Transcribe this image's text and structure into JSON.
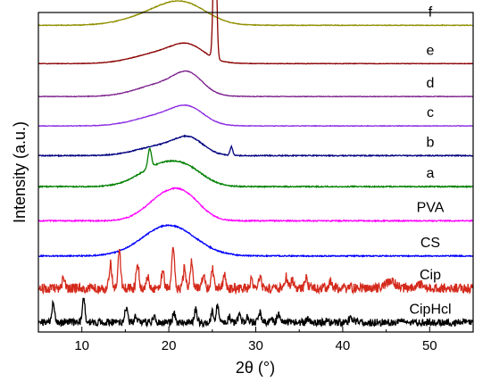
{
  "chart_data": {
    "type": "line",
    "title": "",
    "xlabel": "2θ (°)",
    "ylabel": "Intensity (a.u.)",
    "xlim": [
      5,
      55
    ],
    "xticks": [
      10,
      20,
      30,
      40,
      50
    ],
    "y_tick_labels": "none",
    "grid": false,
    "series": [
      {
        "name": "f",
        "color": "#8f8f00",
        "baseline": 0.96,
        "amp": 0.045,
        "broad": [
          {
            "c": 19.5,
            "h": 1.0,
            "w": 3.5
          },
          {
            "c": 22.0,
            "h": 0.85,
            "w": 2.5
          }
        ],
        "sharp": [],
        "noise": 0.008
      },
      {
        "name": "e",
        "color": "#8b0000",
        "baseline": 0.84,
        "amp": 0.04,
        "broad": [
          {
            "c": 19.5,
            "h": 0.9,
            "w": 3.2
          },
          {
            "c": 22.3,
            "h": 0.95,
            "w": 1.8
          }
        ],
        "sharp": [
          {
            "c": 25.3,
            "h": 11.5,
            "w": 0.18
          }
        ],
        "noise": 0.007
      },
      {
        "name": "d",
        "color": "#7b1f8c",
        "baseline": 0.737,
        "amp": 0.045,
        "broad": [
          {
            "c": 19.5,
            "h": 0.9,
            "w": 3.0
          },
          {
            "c": 22.3,
            "h": 1.15,
            "w": 1.6
          }
        ],
        "sharp": [],
        "noise": 0.007
      },
      {
        "name": "c",
        "color": "#8a2be2",
        "baseline": 0.645,
        "amp": 0.045,
        "broad": [
          {
            "c": 19.3,
            "h": 0.75,
            "w": 3.0
          },
          {
            "c": 22.3,
            "h": 0.95,
            "w": 1.8
          }
        ],
        "sharp": [],
        "noise": 0.007
      },
      {
        "name": "b",
        "color": "#000080",
        "baseline": 0.552,
        "amp": 0.045,
        "broad": [
          {
            "c": 19.3,
            "h": 0.7,
            "w": 2.8
          },
          {
            "c": 22.4,
            "h": 0.95,
            "w": 1.6
          }
        ],
        "sharp": [
          {
            "c": 27.2,
            "h": 0.6,
            "w": 0.15
          }
        ],
        "noise": 0.012
      },
      {
        "name": "a",
        "color": "#008000",
        "baseline": 0.455,
        "amp": 0.05,
        "broad": [
          {
            "c": 19.2,
            "h": 1.3,
            "w": 2.6
          },
          {
            "c": 22.3,
            "h": 0.7,
            "w": 2.0
          }
        ],
        "sharp": [
          {
            "c": 17.8,
            "h": 1.2,
            "w": 0.2
          }
        ],
        "noise": 0.012
      },
      {
        "name": "PVA",
        "color": "#ff00ff",
        "baseline": 0.348,
        "amp": 0.05,
        "broad": [
          {
            "c": 19.6,
            "h": 1.5,
            "w": 2.2
          },
          {
            "c": 22.2,
            "h": 1.0,
            "w": 1.8
          }
        ],
        "sharp": [],
        "noise": 0.012
      },
      {
        "name": "CS",
        "color": "#0000ff",
        "baseline": 0.238,
        "amp": 0.06,
        "broad": [
          {
            "c": 20.0,
            "h": 1.6,
            "w": 3.0
          }
        ],
        "sharp": [],
        "noise": 0.01
      },
      {
        "name": "Cip",
        "color": "#d42a1c",
        "baseline": 0.137,
        "amp": 0.025,
        "broad": [],
        "sharp": [
          {
            "c": 7.9,
            "h": 1.3,
            "w": 0.15
          },
          {
            "c": 13.3,
            "h": 3.0,
            "w": 0.15
          },
          {
            "c": 14.3,
            "h": 5.0,
            "w": 0.15
          },
          {
            "c": 16.4,
            "h": 3.5,
            "w": 0.15
          },
          {
            "c": 17.6,
            "h": 1.5,
            "w": 0.15
          },
          {
            "c": 19.3,
            "h": 2.2,
            "w": 0.15
          },
          {
            "c": 20.5,
            "h": 5.2,
            "w": 0.15
          },
          {
            "c": 21.8,
            "h": 2.5,
            "w": 0.15
          },
          {
            "c": 22.6,
            "h": 3.2,
            "w": 0.15
          },
          {
            "c": 24.0,
            "h": 2.0,
            "w": 0.15
          },
          {
            "c": 25.0,
            "h": 2.5,
            "w": 0.15
          },
          {
            "c": 26.4,
            "h": 1.8,
            "w": 0.15
          },
          {
            "c": 29.5,
            "h": 1.2,
            "w": 0.15
          },
          {
            "c": 30.5,
            "h": 1.5,
            "w": 0.15
          },
          {
            "c": 33.5,
            "h": 1.4,
            "w": 0.15
          },
          {
            "c": 34.2,
            "h": 1.0,
            "w": 0.15
          },
          {
            "c": 35.8,
            "h": 1.5,
            "w": 0.15
          },
          {
            "c": 38.6,
            "h": 1.0,
            "w": 0.15
          },
          {
            "c": 45.5,
            "h": 0.8,
            "w": 0.6
          },
          {
            "c": 49.0,
            "h": 0.6,
            "w": 0.4
          }
        ],
        "noise": 0.2
      },
      {
        "name": "CipHcl",
        "color": "#000000",
        "baseline": 0.03,
        "amp": 0.025,
        "broad": [],
        "sharp": [
          {
            "c": 6.7,
            "h": 2.4,
            "w": 0.15
          },
          {
            "c": 10.2,
            "h": 3.0,
            "w": 0.15
          },
          {
            "c": 15.1,
            "h": 1.8,
            "w": 0.15
          },
          {
            "c": 16.2,
            "h": 0.8,
            "w": 0.15
          },
          {
            "c": 18.3,
            "h": 0.6,
            "w": 0.15
          },
          {
            "c": 20.6,
            "h": 1.2,
            "w": 0.15
          },
          {
            "c": 23.1,
            "h": 1.6,
            "w": 0.15
          },
          {
            "c": 25.0,
            "h": 1.5,
            "w": 0.15
          },
          {
            "c": 25.6,
            "h": 2.0,
            "w": 0.15
          },
          {
            "c": 27.0,
            "h": 0.7,
            "w": 0.15
          },
          {
            "c": 28.1,
            "h": 0.9,
            "w": 0.15
          },
          {
            "c": 29.0,
            "h": 0.6,
            "w": 0.15
          },
          {
            "c": 30.5,
            "h": 1.2,
            "w": 0.15
          },
          {
            "c": 31.8,
            "h": 0.6,
            "w": 0.15
          },
          {
            "c": 32.6,
            "h": 1.1,
            "w": 0.15
          },
          {
            "c": 36.0,
            "h": 0.5,
            "w": 0.15
          },
          {
            "c": 38.2,
            "h": 0.5,
            "w": 0.15
          },
          {
            "c": 41.0,
            "h": 0.4,
            "w": 0.3
          }
        ],
        "noise": 0.15
      }
    ]
  }
}
